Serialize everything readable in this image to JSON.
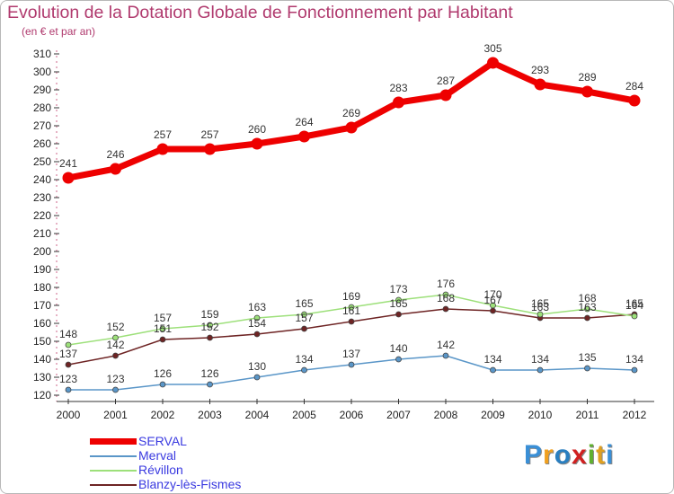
{
  "title": "Evolution de la Dotation Globale de Fonctionnement par Habitant",
  "subtitle": "(en € et par an)",
  "logo": {
    "text": "Proxiti",
    "letters": [
      "P",
      "r",
      "o",
      "x",
      "i",
      "t",
      "i"
    ],
    "colors": [
      "#3a8fd6",
      "#f0a020",
      "#2a7fc0",
      "#d02020",
      "#60b030",
      "#e0a020",
      "#3a8fd6"
    ]
  },
  "chart_data": {
    "type": "line",
    "x": [
      "2000",
      "2001",
      "2002",
      "2003",
      "2004",
      "2005",
      "2006",
      "2007",
      "2008",
      "2009",
      "2010",
      "2011",
      "2012"
    ],
    "ylim": [
      120,
      310
    ],
    "yticks": [
      120,
      130,
      140,
      150,
      160,
      170,
      180,
      190,
      200,
      210,
      220,
      230,
      240,
      250,
      260,
      270,
      280,
      290,
      300,
      310
    ],
    "grid": false,
    "legend_position": "bottom-left",
    "series": [
      {
        "name": "SERVAL",
        "color": "#ee0000",
        "values": [
          241,
          246,
          257,
          257,
          260,
          264,
          269,
          283,
          287,
          305,
          293,
          289,
          284
        ],
        "labels": [
          "241",
          "246",
          "257",
          "257",
          "260",
          "264",
          "269",
          "283",
          "287",
          "305",
          "293",
          "289",
          "284"
        ]
      },
      {
        "name": "Merval",
        "color": "#5a96c8",
        "values": [
          123,
          123,
          126,
          126,
          130,
          134,
          137,
          140,
          142,
          134,
          134,
          135,
          134
        ],
        "labels": [
          "123",
          "123",
          "126",
          "126",
          "130",
          "134",
          "137",
          "140",
          "142",
          "134",
          "134",
          "135",
          "134"
        ]
      },
      {
        "name": "Révillon",
        "color": "#9de07a",
        "values": [
          148,
          152,
          157,
          159,
          163,
          165,
          169,
          173,
          176,
          170,
          165,
          168,
          164
        ],
        "labels": [
          "148",
          "152",
          "157",
          "159",
          "163",
          "165",
          "169",
          "173",
          "176",
          "170",
          "165",
          "168",
          "164"
        ]
      },
      {
        "name": "Blanzy-lès-Fismes",
        "color": "#6e2424",
        "values": [
          137,
          142,
          151,
          152,
          154,
          157,
          161,
          165,
          168,
          167,
          163,
          163,
          165
        ],
        "labels": [
          "137",
          "142",
          "151",
          "152",
          "154",
          "157",
          "161",
          "165",
          "168",
          "167",
          "163",
          "163",
          "165"
        ]
      }
    ]
  }
}
